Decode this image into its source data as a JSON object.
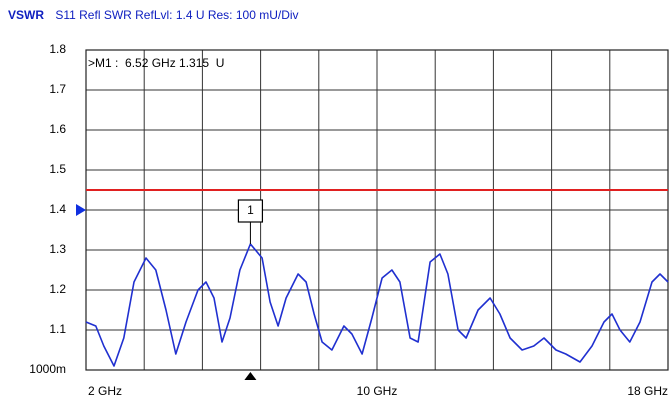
{
  "chart_data": {
    "type": "line",
    "title": "VSWR",
    "subtitle": "S11 Refl SWR RefLvl: 1.4 U Res: 100 mU/Div",
    "x": [
      2.0,
      2.27,
      2.49,
      2.77,
      3.04,
      3.32,
      3.65,
      3.92,
      4.2,
      4.47,
      4.75,
      5.08,
      5.3,
      5.52,
      5.74,
      5.96,
      6.23,
      6.52,
      6.84,
      7.06,
      7.28,
      7.5,
      7.83,
      8.05,
      8.27,
      8.49,
      8.76,
      9.09,
      9.31,
      9.59,
      9.86,
      10.14,
      10.41,
      10.63,
      10.91,
      11.13,
      11.46,
      11.73,
      11.95,
      12.23,
      12.45,
      12.78,
      13.11,
      13.38,
      13.66,
      13.99,
      14.31,
      14.59,
      14.92,
      15.19,
      15.58,
      15.91,
      16.24,
      16.46,
      16.68,
      16.95,
      17.23,
      17.56,
      17.78,
      18.0
    ],
    "series": [
      {
        "color": "#2030d0",
        "values": [
          1.12,
          1.11,
          1.06,
          1.01,
          1.08,
          1.22,
          1.28,
          1.25,
          1.15,
          1.04,
          1.12,
          1.2,
          1.22,
          1.18,
          1.07,
          1.13,
          1.25,
          1.315,
          1.28,
          1.17,
          1.11,
          1.18,
          1.24,
          1.22,
          1.14,
          1.07,
          1.05,
          1.11,
          1.09,
          1.04,
          1.13,
          1.23,
          1.25,
          1.22,
          1.08,
          1.07,
          1.27,
          1.29,
          1.24,
          1.1,
          1.08,
          1.15,
          1.18,
          1.14,
          1.08,
          1.05,
          1.06,
          1.08,
          1.05,
          1.04,
          1.02,
          1.06,
          1.12,
          1.14,
          1.1,
          1.07,
          1.12,
          1.22,
          1.24,
          1.22
        ]
      }
    ],
    "xlim": [
      2,
      18
    ],
    "ylim": [
      1.0,
      1.8
    ],
    "xticks": [
      {
        "value": 2,
        "label": "2 GHz"
      },
      {
        "value": 10,
        "label": "10 GHz"
      },
      {
        "value": 18,
        "label": "18 GHz"
      }
    ],
    "xgrid": [
      3.6,
      5.2,
      6.8,
      8.4,
      11.6,
      13.2,
      14.8,
      16.4
    ],
    "yticks": [
      {
        "value": 1.0,
        "label": "1000m"
      },
      1.1,
      1.2,
      1.3,
      1.4,
      1.5,
      1.6,
      1.7,
      1.8
    ],
    "grid": true,
    "limit_line": {
      "value": 1.45,
      "color": "#e02020"
    },
    "ref_level": 1.4,
    "marker": {
      "label": "1",
      "x": 6.52,
      "y": 1.315,
      "readout": ">M1 :  6.52 GHz 1.315  U"
    }
  }
}
